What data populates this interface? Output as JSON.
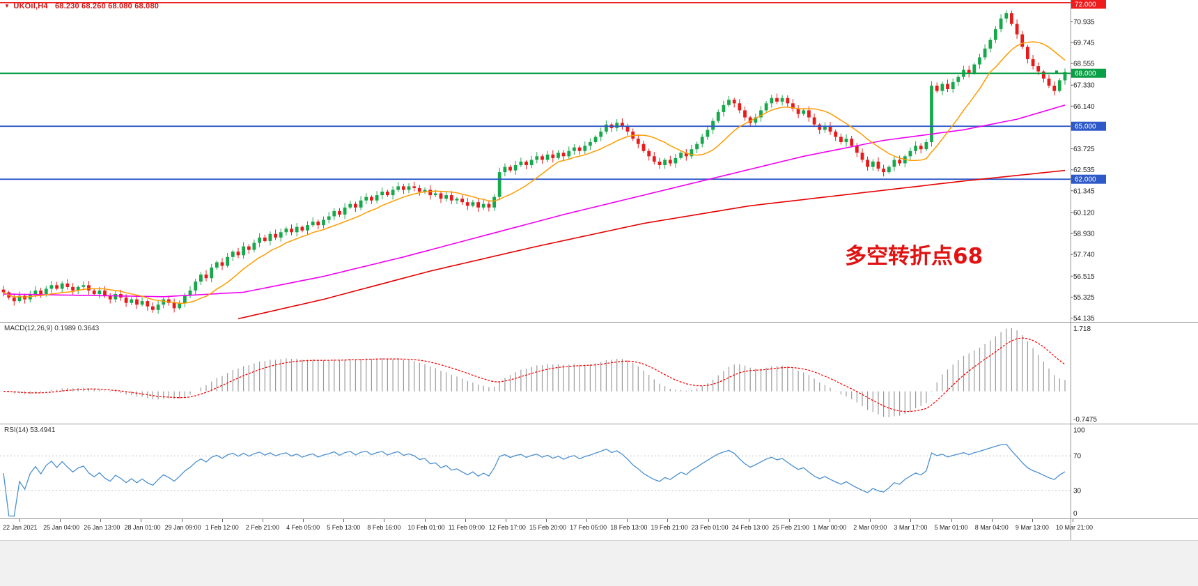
{
  "window": {
    "bg": "#ffffff"
  },
  "header": {
    "marker_icon": "▼",
    "symbol_title": "UKOil,H4",
    "ohlc_text": "68.230 68.260 68.080 68.080",
    "color": "#cc1414"
  },
  "annotation": {
    "text": "多空转折点68",
    "color": "#e01212"
  },
  "price_axis": {
    "top_price": 72.15,
    "bottom_price": 54.0,
    "ticks": [
      70.935,
      69.745,
      68.555,
      67.33,
      66.14,
      63.725,
      62.535,
      61.345,
      60.12,
      58.93,
      57.74,
      56.515,
      55.325,
      54.135
    ]
  },
  "hlines": [
    {
      "price": 72.0,
      "label": "72.000",
      "color": "#ee1c1c",
      "width": 1.6
    },
    {
      "price": 68.0,
      "label": "68.000",
      "color": "#0a9f46",
      "width": 2
    },
    {
      "price": 65.0,
      "label": "65.000",
      "color": "#2e59c9",
      "width": 1.8
    },
    {
      "price": 62.0,
      "label": "62.000",
      "color": "#2e59c9",
      "width": 1.8
    }
  ],
  "chart_data": {
    "type": "candlestick",
    "symbol": "UKOil",
    "timeframe": "H4",
    "title": "UKOil,H4 68.230 68.260 68.080 68.080",
    "current_ohlc": {
      "open": 68.23,
      "high": 68.26,
      "low": 68.08,
      "close": 68.08
    },
    "ylim": [
      54.0,
      72.15
    ],
    "grid": false,
    "candle_up_color": "#18a84c",
    "candle_down_color": "#e81b1b",
    "closes": [
      55.6,
      55.3,
      55.1,
      55.4,
      55.2,
      55.5,
      55.7,
      55.5,
      55.8,
      56.0,
      55.8,
      56.1,
      55.9,
      55.7,
      55.9,
      56.0,
      55.7,
      55.5,
      55.7,
      55.4,
      55.2,
      55.5,
      55.3,
      55.0,
      55.2,
      54.9,
      55.1,
      54.8,
      54.6,
      54.9,
      55.2,
      55.0,
      54.7,
      55.0,
      55.4,
      55.7,
      56.2,
      56.6,
      56.4,
      57.0,
      57.3,
      57.1,
      57.6,
      57.9,
      57.7,
      58.2,
      58.0,
      58.4,
      58.7,
      58.5,
      58.9,
      58.7,
      59.0,
      59.2,
      59.0,
      59.3,
      59.1,
      59.4,
      59.6,
      59.4,
      59.7,
      59.9,
      60.2,
      60.0,
      60.4,
      60.6,
      60.4,
      60.8,
      61.0,
      60.8,
      61.1,
      61.3,
      61.1,
      61.4,
      61.6,
      61.4,
      61.6,
      61.5,
      61.3,
      61.4,
      61.1,
      61.2,
      60.9,
      61.1,
      60.8,
      60.9,
      60.7,
      60.5,
      60.7,
      60.4,
      60.6,
      60.4,
      61.0,
      62.4,
      62.7,
      62.5,
      62.8,
      63.0,
      62.8,
      63.1,
      63.3,
      63.1,
      63.4,
      63.2,
      63.5,
      63.3,
      63.6,
      63.8,
      63.6,
      63.9,
      64.1,
      64.4,
      64.7,
      65.1,
      64.9,
      65.2,
      65.0,
      64.7,
      64.3,
      64.0,
      63.6,
      63.3,
      63.0,
      62.8,
      63.1,
      62.9,
      63.2,
      63.5,
      63.3,
      63.7,
      64.0,
      64.4,
      64.8,
      65.3,
      65.8,
      66.2,
      66.5,
      66.3,
      65.9,
      65.5,
      65.2,
      65.5,
      65.9,
      66.3,
      66.6,
      66.4,
      66.6,
      66.3,
      66.0,
      65.7,
      65.9,
      65.5,
      65.1,
      64.8,
      65.0,
      64.7,
      64.4,
      64.1,
      64.3,
      63.9,
      63.5,
      63.1,
      62.7,
      63.0,
      62.6,
      62.4,
      62.7,
      63.1,
      62.9,
      63.3,
      63.6,
      63.9,
      63.7,
      64.1,
      67.3,
      67.0,
      67.4,
      67.1,
      67.5,
      67.8,
      68.2,
      68.0,
      68.5,
      68.9,
      69.4,
      69.9,
      70.5,
      71.1,
      71.4,
      70.8,
      70.2,
      69.5,
      68.8,
      68.4,
      68.1,
      67.7,
      67.3,
      67.0,
      67.6,
      68.08
    ],
    "x_labels": [
      "22 Jan 2021",
      "25 Jan 04:00",
      "26 Jan 13:00",
      "28 Jan 01:00",
      "29 Jan 09:00",
      "1 Feb 12:00",
      "2 Feb 21:00",
      "4 Feb 05:00",
      "5 Feb 13:00",
      "8 Feb 16:00",
      "10 Feb 01:00",
      "11 Feb 09:00",
      "12 Feb 17:00",
      "15 Feb 20:00",
      "17 Feb 05:00",
      "18 Feb 13:00",
      "19 Feb 21:00",
      "23 Feb 01:00",
      "24 Feb 13:00",
      "25 Feb 21:00",
      "1 Mar 00:00",
      "2 Mar 09:00",
      "3 Mar 17:00",
      "5 Mar 01:00",
      "8 Mar 04:00",
      "9 Mar 13:00",
      "10 Mar 21:00"
    ],
    "ma_fast": {
      "period": 12,
      "color": "#ff9b00"
    },
    "ma_mid": {
      "color": "#f000f0",
      "points": [
        [
          0,
          55.5
        ],
        [
          30,
          55.35
        ],
        [
          45,
          55.6
        ],
        [
          60,
          56.5
        ],
        [
          75,
          57.6
        ],
        [
          90,
          58.8
        ],
        [
          105,
          60.0
        ],
        [
          120,
          61.1
        ],
        [
          135,
          62.2
        ],
        [
          150,
          63.3
        ],
        [
          165,
          64.2
        ],
        [
          180,
          64.8
        ],
        [
          190,
          65.4
        ],
        [
          199,
          66.2
        ]
      ]
    },
    "ma_slow": {
      "color": "#e60000",
      "points": [
        [
          44,
          54.1
        ],
        [
          60,
          55.2
        ],
        [
          80,
          56.8
        ],
        [
          100,
          58.2
        ],
        [
          120,
          59.5
        ],
        [
          140,
          60.5
        ],
        [
          160,
          61.2
        ],
        [
          180,
          61.9
        ],
        [
          199,
          62.5
        ]
      ]
    },
    "macd": {
      "label": "MACD(12,26,9) 0.1989 0.3643",
      "fast": 12,
      "slow": 26,
      "signal": 9,
      "current_macd": 0.1989,
      "current_signal": 0.3643,
      "axis_max": 1.718,
      "axis_min": -0.7475,
      "axis_labels": [
        "1.718",
        "-0.7475"
      ],
      "histogram_color": "#9a9a9a",
      "signal_color": "#ff0000"
    },
    "rsi": {
      "label": "RSI(14) 53.4941",
      "period": 14,
      "current": 53.4941,
      "levels": [
        100,
        70,
        30,
        0
      ],
      "dashed_levels": [
        70,
        30
      ],
      "line_color": "#4a8fd0",
      "level_line_color": "#c2c2c2"
    }
  }
}
